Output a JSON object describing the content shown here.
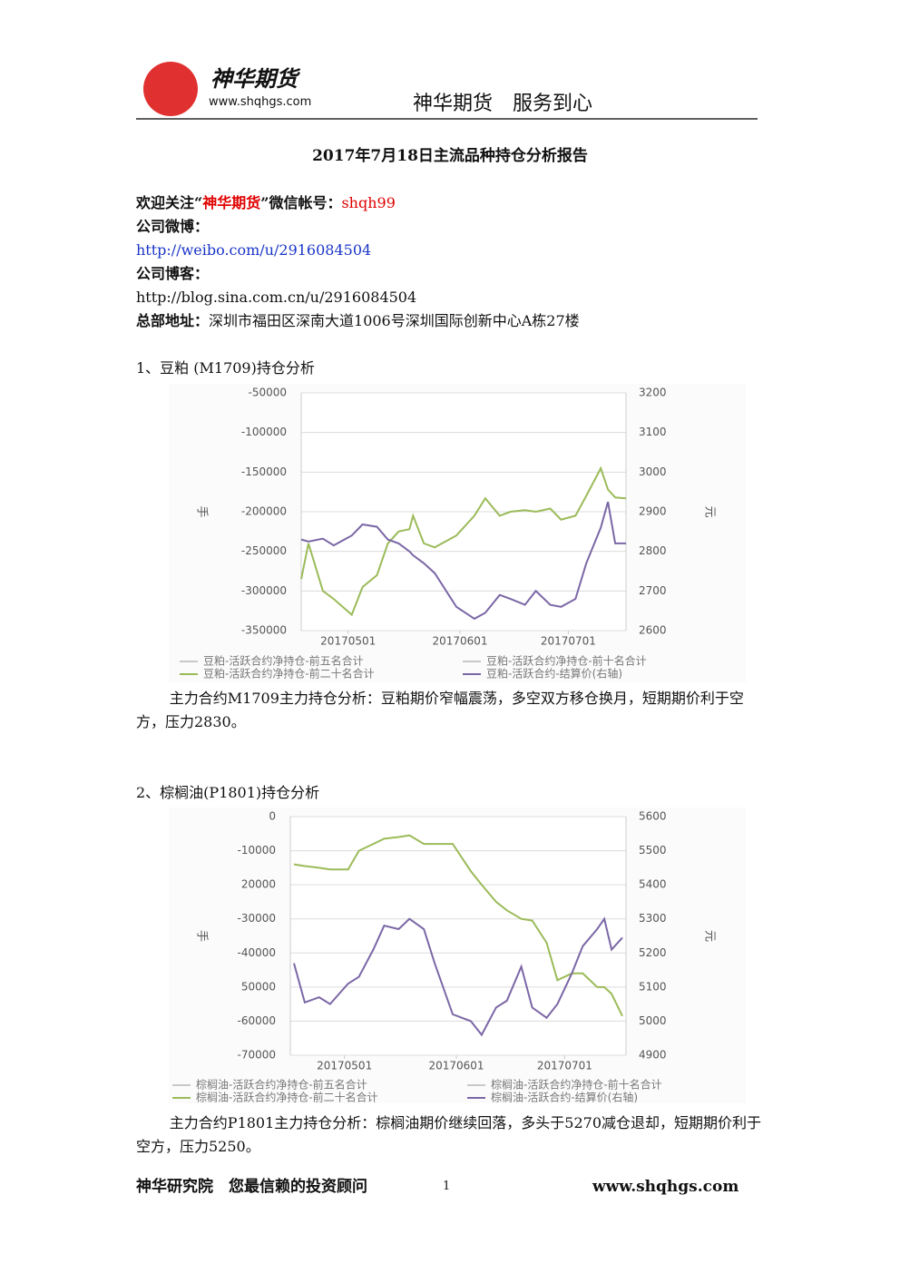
{
  "header": {
    "brand": "神华期货",
    "website": "www.shqhgs.com",
    "slogan": "神华期货　服务到心"
  },
  "title": "2017年7月18日主流品种持仓分析报告",
  "contact": {
    "wechat_prefix": "欢迎关注“",
    "wechat_brand": "神华期货",
    "wechat_middle": "”微信帐号：",
    "wechat_account": "shqh99",
    "weibo_label": "公司微博：",
    "weibo_url": "http://weibo.com/u/2916084504",
    "blog_label": "公司博客：",
    "blog_url": "http://blog.sina.com.cn/u/2916084504",
    "address_label": "总部地址：",
    "address": "深圳市福田区深南大道1006号深圳国际创新中心A栋27楼"
  },
  "sections": [
    {
      "heading": "1、豆粕 (M1709)持仓分析",
      "analysis": "主力合约M1709主力持仓分析：豆粕期价窄幅震荡，多空双方移仓换月，短期期价利于空方，压力2830。"
    },
    {
      "heading": "2、棕榈油(P1801)持仓分析",
      "analysis": "主力合约P1801主力持仓分析：棕榈油期价继续回落，多头于5270减仓退却，短期期价利于空方，压力5250。"
    }
  ],
  "footer": {
    "left": "神华研究院　您最信赖的投资顾问",
    "page": "1",
    "website": "www.shqhgs.com"
  },
  "chart_data": [
    {
      "type": "line",
      "ylabel": "手",
      "y2label": "元",
      "grid": true,
      "legend": "bottom",
      "xlim": [
        "20170418",
        "20170717"
      ],
      "xticks": [
        "20170501",
        "20170601",
        "20170701"
      ],
      "ylim": [
        -350000,
        -50000
      ],
      "yticks": [
        -50000,
        -100000,
        -150000,
        -200000,
        -250000,
        -300000,
        -350000
      ],
      "y2lim": [
        2600,
        3200
      ],
      "y2ticks": [
        3200,
        3100,
        3000,
        2900,
        2800,
        2700,
        2600
      ],
      "x": [
        "20170418",
        "20170420",
        "20170424",
        "20170427",
        "20170502",
        "20170505",
        "20170509",
        "20170512",
        "20170515",
        "20170518",
        "20170519",
        "20170522",
        "20170525",
        "20170531",
        "20170605",
        "20170608",
        "20170612",
        "20170615",
        "20170619",
        "20170622",
        "20170626",
        "20170629",
        "20170703",
        "20170706",
        "20170710",
        "20170712",
        "20170714",
        "20170717"
      ],
      "series": [
        {
          "name": "豆粕-活跃合约净持仓-前五名合计",
          "color": "#c8c8c8",
          "values": [
            null,
            null,
            null,
            null,
            null,
            null,
            null,
            null,
            null,
            null,
            null,
            null,
            null,
            null,
            null,
            null,
            null,
            null,
            null,
            null,
            null,
            null,
            null,
            null,
            null,
            null,
            null,
            null
          ]
        },
        {
          "name": "豆粕-活跃合约净持仓-前十名合计",
          "color": "#c8c8c8",
          "values": [
            null,
            null,
            null,
            null,
            null,
            null,
            null,
            null,
            null,
            null,
            null,
            null,
            null,
            null,
            null,
            null,
            null,
            null,
            null,
            null,
            null,
            null,
            null,
            null,
            null,
            null,
            null,
            null
          ]
        },
        {
          "name": "豆粕-活跃合约净持仓-前二十名合计",
          "color": "#9bbb59",
          "values": [
            -285000,
            -240000,
            -300000,
            -310000,
            -330000,
            -295000,
            -280000,
            -240000,
            -225000,
            -222000,
            -205000,
            -240000,
            -245000,
            -230000,
            -205000,
            -183000,
            -205000,
            -200000,
            -198000,
            -200000,
            -196000,
            -210000,
            -205000,
            -180000,
            -145000,
            -172000,
            -182000,
            -183000
          ]
        },
        {
          "name": "豆粕-活跃合约-结算价(右轴)",
          "color": "#7b67a6",
          "axis": "y2",
          "values": [
            2830,
            2825,
            2832,
            2815,
            2840,
            2868,
            2862,
            2830,
            2820,
            2800,
            2790,
            2770,
            2745,
            2660,
            2630,
            2645,
            2690,
            2680,
            2665,
            2700,
            2665,
            2660,
            2680,
            2770,
            2860,
            2925,
            2820,
            2820
          ]
        }
      ]
    },
    {
      "type": "line",
      "ylabel": "手",
      "y2label": "元",
      "grid": true,
      "legend": "bottom",
      "xlim": [
        "20170416",
        "20170718"
      ],
      "xticks": [
        "20170501",
        "20170601",
        "20170701"
      ],
      "ylim": [
        -70000,
        0
      ],
      "yticks": [
        0,
        -10000,
        {
          "value": -20000,
          "label": "20000"
        },
        -30000,
        -40000,
        {
          "value": -50000,
          "label": "50000"
        },
        -60000,
        -70000
      ],
      "y2lim": [
        4900,
        5600
      ],
      "y2ticks": [
        5600,
        5500,
        5400,
        5300,
        5200,
        5100,
        5000,
        4900
      ],
      "x": [
        "20170417",
        "20170420",
        "20170424",
        "20170427",
        "20170502",
        "20170505",
        "20170509",
        "20170512",
        "20170516",
        "20170519",
        "20170523",
        "20170526",
        "20170531",
        "20170605",
        "20170608",
        "20170612",
        "20170615",
        "20170619",
        "20170622",
        "20170626",
        "20170629",
        "20170703",
        "20170706",
        "20170710",
        "20170712",
        "20170714",
        "20170717"
      ],
      "series": [
        {
          "name": "棕榈油-活跃合约净持仓-前五名合计",
          "color": "#c8c8c8",
          "values": [
            null,
            null,
            null,
            null,
            null,
            null,
            null,
            null,
            null,
            null,
            null,
            null,
            null,
            null,
            null,
            null,
            null,
            null,
            null,
            null,
            null,
            null,
            null,
            null,
            null,
            null,
            null
          ]
        },
        {
          "name": "棕榈油-活跃合约净持仓-前十名合计",
          "color": "#c8c8c8",
          "values": [
            null,
            null,
            null,
            null,
            null,
            null,
            null,
            null,
            null,
            null,
            null,
            null,
            null,
            null,
            null,
            null,
            null,
            null,
            null,
            null,
            null,
            null,
            null,
            null,
            null,
            null,
            null
          ]
        },
        {
          "name": "棕榈油-活跃合约净持仓-前二十名合计",
          "color": "#9bbb59",
          "values": [
            -14000,
            -14500,
            -15000,
            -15500,
            -15500,
            -10000,
            -8000,
            -6500,
            -6000,
            -5500,
            -8000,
            -8000,
            -8000,
            -16000,
            -20000,
            -25000,
            -27500,
            -30000,
            -30500,
            -37000,
            -48000,
            -46000,
            -46000,
            -50000,
            -50000,
            -52000,
            -58500
          ]
        },
        {
          "name": "棕榈油-活跃合约-结算价(右轴)",
          "color": "#7b67a6",
          "axis": "y2",
          "values": [
            5170,
            5055,
            5070,
            5050,
            5110,
            5130,
            5210,
            5280,
            5270,
            5300,
            5270,
            5170,
            5020,
            5000,
            4960,
            5040,
            5060,
            5160,
            5040,
            5010,
            5050,
            5140,
            5220,
            5270,
            5300,
            5210,
            5245
          ]
        }
      ]
    }
  ]
}
